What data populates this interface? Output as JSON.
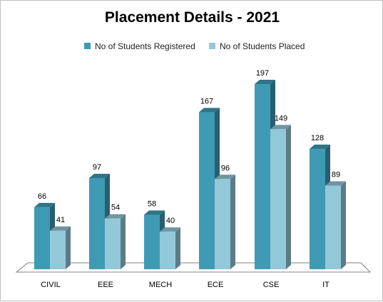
{
  "chart_data": {
    "type": "bar",
    "title": "Placement Details - 2021",
    "categories": [
      "CIVIL",
      "EEE",
      "MECH",
      "ECE",
      "CSE",
      "IT"
    ],
    "series": [
      {
        "name": "No of Students Registered",
        "values": [
          66,
          97,
          58,
          167,
          197,
          128
        ],
        "color": "#3f9ab3"
      },
      {
        "name": "No of Students Placed",
        "values": [
          41,
          54,
          40,
          96,
          149,
          89
        ],
        "color": "#93c8d8"
      }
    ],
    "ylim": [
      0,
      200
    ],
    "grid": false,
    "legend": "top",
    "style": "3d-clustered-column"
  }
}
